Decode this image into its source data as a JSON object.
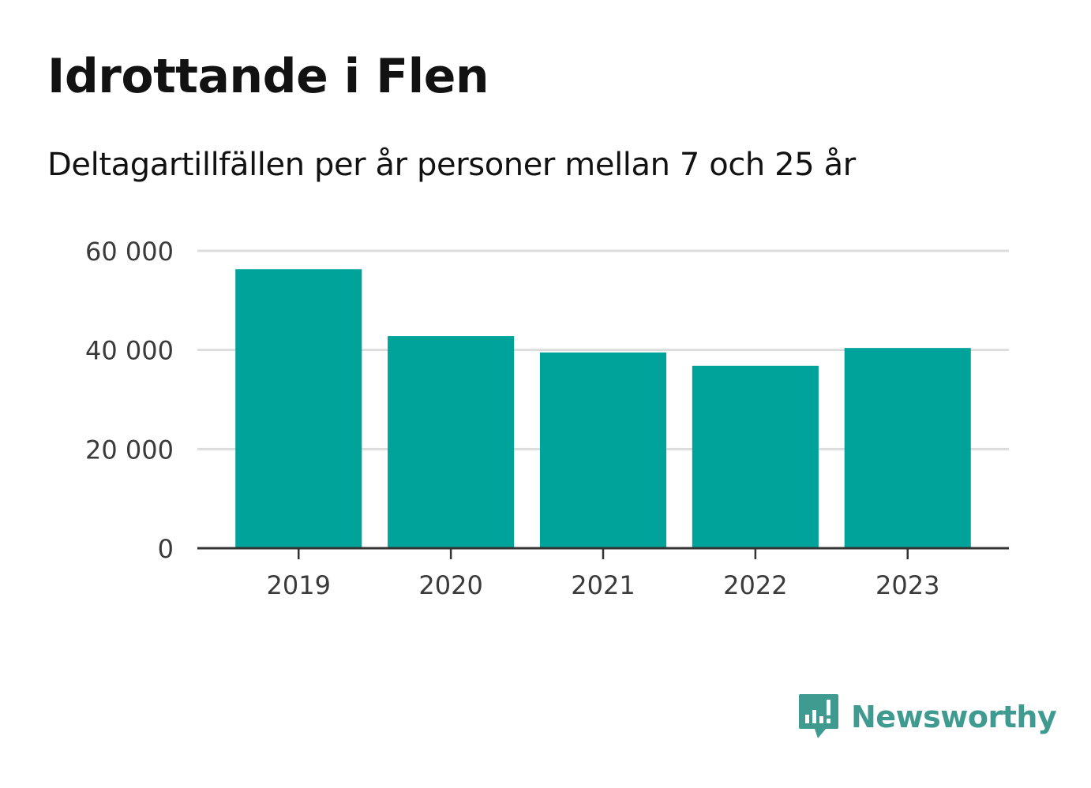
{
  "title": "Idrottande i Flen",
  "subtitle": "Deltagartillfällen per år personer mellan 7 och 25 år",
  "brand": {
    "name": "Newsworthy",
    "icon": "newsworthy-logo-icon",
    "color": "#3f9a90"
  },
  "chart_data": {
    "type": "bar",
    "categories": [
      "2019",
      "2020",
      "2021",
      "2022",
      "2023"
    ],
    "values": [
      56300,
      42800,
      39500,
      36800,
      40400
    ],
    "ylim": [
      0,
      60000
    ],
    "yticks": [
      0,
      20000,
      40000,
      60000
    ],
    "ytick_labels": [
      "0",
      "20 000",
      "40 000",
      "60 000"
    ],
    "xlabel": "",
    "ylabel": "",
    "grid": true,
    "bar_color": "#00a39a",
    "grid_color": "#dddddd",
    "axis_color": "#333333"
  }
}
